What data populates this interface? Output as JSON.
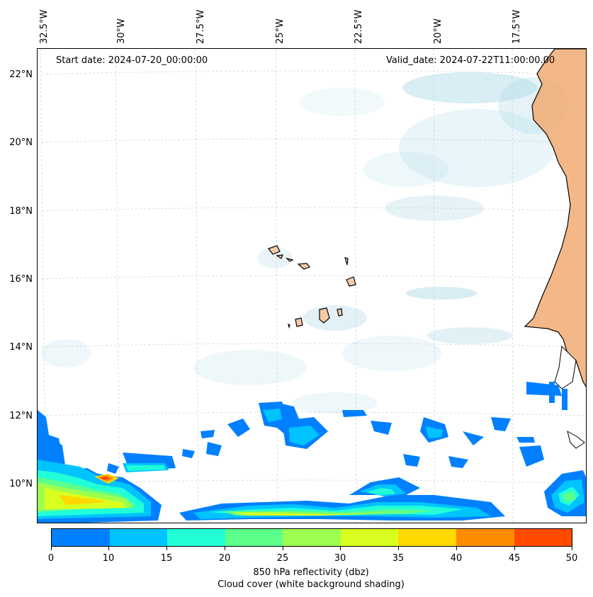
{
  "header": {
    "start_date": "Start date: 2024-07-20_00:00:00",
    "valid_date": "Valid_date: 2024-07-22T11:00:00.00"
  },
  "axes": {
    "longitude_labels": [
      "32.5°W",
      "30°W",
      "27.5°W",
      "25°W",
      "22.5°W",
      "20°W",
      "17.5°W"
    ],
    "latitude_labels": [
      "22°N",
      "20°N",
      "18°N",
      "16°N",
      "14°N",
      "12°N",
      "10°N"
    ]
  },
  "colorbar": {
    "ticks": [
      "0",
      "10",
      "15",
      "20",
      "25",
      "30",
      "35",
      "40",
      "45",
      "50"
    ],
    "colors": [
      "#0080ff",
      "#00c4ff",
      "#20ffd8",
      "#5cff8a",
      "#9cff50",
      "#d8ff20",
      "#ffd800",
      "#ff8c00",
      "#ff4a00"
    ],
    "label": "850 hPa reflectivity (dbz)",
    "sublabel": "Cloud cover (white background shading)"
  },
  "map": {
    "land_color": "#f0a060",
    "cloud_color": "#a9d6e6",
    "reflectivity_legend_meaning": "dbz shaded over Atlantic off West Africa"
  }
}
